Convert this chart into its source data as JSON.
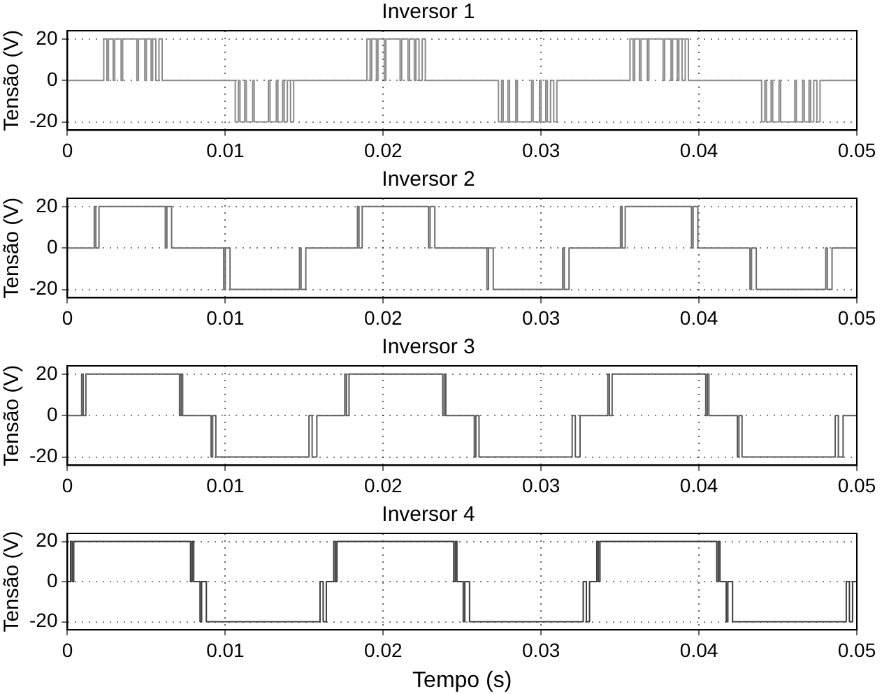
{
  "chart_data": [
    {
      "type": "step",
      "title": "Inversor 1",
      "ylabel": "Tensão (V)",
      "color": "#8c8c8c",
      "xlim": [
        0,
        0.05
      ],
      "ylim": [
        -24,
        24
      ],
      "xticks": [
        0,
        0.01,
        0.02,
        0.03,
        0.04,
        0.05
      ],
      "yticks": [
        -20,
        0,
        20
      ],
      "grid": true,
      "x": [
        0,
        0.0023,
        0.0025,
        0.0026,
        0.0029,
        0.003,
        0.0034,
        0.0035,
        0.0044,
        0.0045,
        0.0049,
        0.005,
        0.0053,
        0.0054,
        0.0056,
        0.0058,
        0.006,
        0.01063,
        0.01083,
        0.01093,
        0.01123,
        0.01133,
        0.01173,
        0.01183,
        0.01273,
        0.01283,
        0.01323,
        0.01333,
        0.01363,
        0.01373,
        0.01393,
        0.01413,
        0.01433,
        0.01897,
        0.01917,
        0.01927,
        0.01957,
        0.01967,
        0.02007,
        0.02017,
        0.02107,
        0.02117,
        0.02157,
        0.02167,
        0.02197,
        0.02207,
        0.02227,
        0.02247,
        0.02267,
        0.0273,
        0.0275,
        0.0276,
        0.0279,
        0.028,
        0.0284,
        0.0285,
        0.0294,
        0.0295,
        0.0299,
        0.03,
        0.0303,
        0.0304,
        0.0306,
        0.0308,
        0.031,
        0.03563,
        0.03583,
        0.03593,
        0.03623,
        0.03633,
        0.03673,
        0.03683,
        0.03773,
        0.03783,
        0.03823,
        0.03833,
        0.03863,
        0.03873,
        0.03893,
        0.03913,
        0.03933,
        0.04397,
        0.04417,
        0.04427,
        0.04457,
        0.04467,
        0.04507,
        0.04517,
        0.04607,
        0.04617,
        0.04657,
        0.04667,
        0.04697,
        0.04707,
        0.04727,
        0.04747,
        0.04767,
        0.05
      ],
      "values": [
        0,
        20,
        0,
        20,
        0,
        20,
        0,
        20,
        0,
        20,
        0,
        20,
        0,
        20,
        0,
        20,
        0,
        -20,
        0,
        -20,
        0,
        -20,
        0,
        -20,
        0,
        -20,
        0,
        -20,
        0,
        -20,
        0,
        -20,
        0,
        20,
        0,
        20,
        0,
        20,
        0,
        20,
        0,
        20,
        0,
        20,
        0,
        20,
        0,
        20,
        0,
        -20,
        0,
        -20,
        0,
        -20,
        0,
        -20,
        0,
        -20,
        0,
        -20,
        0,
        -20,
        0,
        -20,
        0,
        20,
        0,
        20,
        0,
        20,
        0,
        20,
        0,
        20,
        0,
        20,
        0,
        20,
        0,
        20,
        0,
        -20,
        0,
        -20,
        0,
        -20,
        0,
        -20,
        0,
        -20,
        0,
        -20,
        0,
        -20,
        0,
        -20,
        0,
        0
      ]
    },
    {
      "type": "step",
      "title": "Inversor 2",
      "ylabel": "Tensão (V)",
      "color": "#6e6e6e",
      "xlim": [
        0,
        0.05
      ],
      "ylim": [
        -24,
        24
      ],
      "xticks": [
        0,
        0.01,
        0.02,
        0.03,
        0.04,
        0.05
      ],
      "yticks": [
        -20,
        0,
        20
      ],
      "grid": true,
      "x": [
        0,
        0.0017,
        0.0018,
        0.002,
        0.0062,
        0.0063,
        0.0066,
        0.0099,
        0.01,
        0.0103,
        0.0147,
        0.0148,
        0.0151,
        0.01837,
        0.01847,
        0.01867,
        0.02287,
        0.02297,
        0.02327,
        0.02657,
        0.02667,
        0.02697,
        0.03137,
        0.03147,
        0.03177,
        0.03503,
        0.03513,
        0.03533,
        0.03953,
        0.03963,
        0.03993,
        0.04323,
        0.04333,
        0.04363,
        0.04803,
        0.04813,
        0.04843,
        0.05
      ],
      "values": [
        0,
        20,
        0,
        20,
        0,
        20,
        0,
        -20,
        0,
        -20,
        0,
        -20,
        0,
        20,
        0,
        20,
        0,
        20,
        0,
        -20,
        0,
        -20,
        0,
        -20,
        0,
        20,
        0,
        20,
        0,
        20,
        0,
        -20,
        0,
        -20,
        0,
        -20,
        0,
        0
      ]
    },
    {
      "type": "step",
      "title": "Inversor 3",
      "ylabel": "Tensão (V)",
      "color": "#5a5a5a",
      "xlim": [
        0,
        0.05
      ],
      "ylim": [
        -24,
        24
      ],
      "xticks": [
        0,
        0.01,
        0.02,
        0.03,
        0.04,
        0.05
      ],
      "yticks": [
        -20,
        0,
        20
      ],
      "grid": true,
      "x": [
        0,
        0.0009,
        0.001,
        0.00117,
        0.0071,
        0.0072,
        0.0073,
        0.0091,
        0.0092,
        0.0094,
        0.0153,
        0.0155,
        0.0158,
        0.01757,
        0.01767,
        0.01784,
        0.02377,
        0.02387,
        0.02397,
        0.02577,
        0.02587,
        0.02607,
        0.03197,
        0.03217,
        0.03247,
        0.03423,
        0.03433,
        0.0345,
        0.04043,
        0.04053,
        0.04063,
        0.04243,
        0.04253,
        0.04273,
        0.04863,
        0.04883,
        0.04913,
        0.05
      ],
      "values": [
        0,
        20,
        0,
        20,
        0,
        20,
        0,
        -20,
        0,
        -20,
        0,
        -20,
        0,
        20,
        0,
        20,
        0,
        20,
        0,
        -20,
        0,
        -20,
        0,
        -20,
        0,
        20,
        0,
        20,
        0,
        20,
        0,
        -20,
        0,
        -20,
        0,
        -20,
        0,
        0
      ]
    },
    {
      "type": "step",
      "title": "Inversor 4",
      "ylabel": "Tensão (V)",
      "xlabel": "Tempo (s)",
      "color": "#3c3c3c",
      "xlim": [
        0,
        0.05
      ],
      "ylim": [
        -24,
        24
      ],
      "xticks": [
        0,
        0.01,
        0.02,
        0.03,
        0.04,
        0.05
      ],
      "yticks": [
        -20,
        0,
        20
      ],
      "grid": true,
      "x": [
        0,
        0.0002,
        0.0003,
        0.0004,
        0.0078,
        0.0079,
        0.008,
        0.0084,
        0.0085,
        0.0088,
        0.016,
        0.0162,
        0.0164,
        0.01687,
        0.01697,
        0.01707,
        0.02447,
        0.02457,
        0.02467,
        0.02507,
        0.02517,
        0.02547,
        0.03267,
        0.03287,
        0.03307,
        0.03353,
        0.03363,
        0.03373,
        0.04113,
        0.04123,
        0.04133,
        0.04173,
        0.04183,
        0.04213,
        0.04933,
        0.04953,
        0.04973,
        0.05
      ],
      "values": [
        0,
        20,
        0,
        20,
        0,
        20,
        0,
        -20,
        0,
        -20,
        0,
        -20,
        0,
        20,
        0,
        20,
        0,
        20,
        0,
        -20,
        0,
        -20,
        0,
        -20,
        0,
        20,
        0,
        20,
        0,
        20,
        0,
        -20,
        0,
        -20,
        0,
        -20,
        0,
        0
      ]
    }
  ]
}
